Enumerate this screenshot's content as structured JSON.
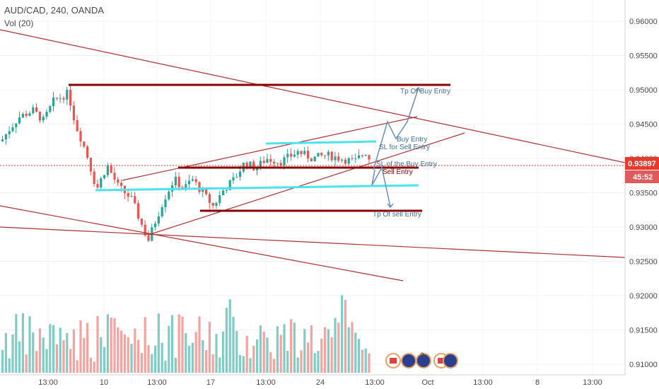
{
  "header": {
    "title": "AUD/CAD, 240, OANDA",
    "indicator": "Vol (20)"
  },
  "current": {
    "price": "0.93897",
    "countdown": "45:52",
    "color": "#e63a2e",
    "countdown_color": "#e05a5a"
  },
  "colors": {
    "up": "#26a69a",
    "down": "#ef5350",
    "vol_up": "#7fcdc4",
    "vol_down": "#f3a3a0",
    "trend": "#b03030",
    "level": "#8b0000",
    "cyan": "#4de3ec",
    "arrow": "#6b8fb8"
  },
  "chart_data": {
    "type": "candlestick",
    "symbol": "AUD/CAD",
    "timeframe": "240",
    "ylim": [
      0.9098,
      0.964
    ],
    "y_ticks": [
      "0.96000",
      "0.95500",
      "0.95000",
      "0.94500",
      "0.94000",
      "0.93500",
      "0.93000",
      "0.92500",
      "0.92000",
      "0.91500",
      "0.91000"
    ],
    "x_ticks": [
      "13:00",
      "10",
      "13:00",
      "17",
      "13:00",
      "24",
      "13:00",
      "Oct",
      "13:00",
      "8",
      "13:00"
    ],
    "annotations": {
      "tp_buy": "Tp Of Buy Entry",
      "buy_entry": "Buy Entry",
      "sl_sell": "SL for Sell Entry",
      "sl_buy": "SL of the Buy Entry",
      "sell_entry": "Sell Entry",
      "tp_sell": "Tp Of sell Entry"
    },
    "event_badge_label": "3"
  }
}
